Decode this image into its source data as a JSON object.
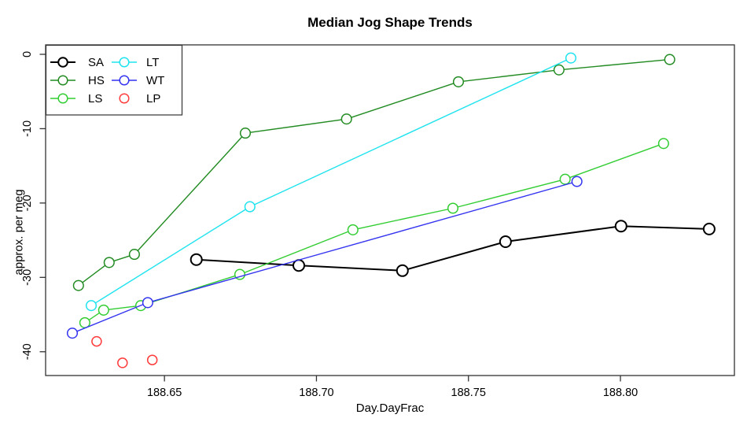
{
  "figure": {
    "title": "Median Jog Shape Trends",
    "xlabel": "Day.DayFrac",
    "ylabel": "approx. per meg"
  },
  "chart_data": {
    "type": "line",
    "title": "Median Jog Shape Trends",
    "xlabel": "Day.DayFrac",
    "ylabel": "approx. per meg",
    "xlim": [
      188.6109,
      188.8375
    ],
    "ylim": [
      -43.2,
      1.27
    ],
    "xticks": [
      188.65,
      188.7,
      188.75,
      188.8
    ],
    "xtick_labels": [
      "188.65",
      "188.70",
      "188.75",
      "188.80"
    ],
    "yticks": [
      0,
      -10,
      -20,
      -30,
      -40
    ],
    "ytick_labels": [
      "0",
      "-10",
      "-20",
      "-30",
      "-40"
    ],
    "grid": false,
    "legend_position": "top-left",
    "legend_columns": 2,
    "axis_color": "#333333",
    "marker": "open-circle",
    "series": [
      {
        "name": "SA",
        "color": "#000000",
        "line": true,
        "lwd": 2,
        "marker_r": 7,
        "points": [
          [
            188.6605,
            -27.6
          ],
          [
            188.6942,
            -28.4
          ],
          [
            188.7283,
            -29.1
          ],
          [
            188.7622,
            -25.2
          ],
          [
            188.8002,
            -23.1
          ],
          [
            188.8292,
            -23.5
          ]
        ]
      },
      {
        "name": "HS",
        "color": "#228B22",
        "line": true,
        "lwd": 1.4,
        "marker_r": 6.3,
        "points": [
          [
            188.6217,
            -31.1
          ],
          [
            188.6318,
            -28.0
          ],
          [
            188.6401,
            -26.9
          ],
          [
            188.6766,
            -10.6
          ],
          [
            188.7099,
            -8.7
          ],
          [
            188.7467,
            -3.7
          ],
          [
            188.7798,
            -2.1
          ],
          [
            188.8162,
            -0.7
          ]
        ]
      },
      {
        "name": "LS",
        "color": "#32CD32",
        "line": true,
        "lwd": 1.4,
        "marker_r": 6.3,
        "points": [
          [
            188.6238,
            -36.1
          ],
          [
            188.63,
            -34.4
          ],
          [
            188.6422,
            -33.8
          ],
          [
            188.6748,
            -29.6
          ],
          [
            188.712,
            -23.6
          ],
          [
            188.7449,
            -20.7
          ],
          [
            188.7818,
            -16.8
          ],
          [
            188.8142,
            -12.0
          ]
        ]
      },
      {
        "name": "LT",
        "color": "#1EE3EE",
        "line": true,
        "lwd": 1.4,
        "marker_r": 6.3,
        "points": [
          [
            188.6259,
            -33.8
          ],
          [
            188.6781,
            -20.5
          ],
          [
            188.7837,
            -0.5
          ]
        ]
      },
      {
        "name": "WT",
        "color": "#3434F0",
        "line": true,
        "lwd": 1.4,
        "marker_r": 6.3,
        "points": [
          [
            188.6197,
            -37.5
          ],
          [
            188.6445,
            -33.4
          ],
          [
            188.7857,
            -17.1
          ]
        ]
      },
      {
        "name": "LP",
        "color": "#FF3B3B",
        "line": false,
        "lwd": 1.5,
        "marker_r": 6,
        "points": [
          [
            188.6277,
            -38.6
          ],
          [
            188.6362,
            -41.5
          ],
          [
            188.646,
            -41.1
          ]
        ]
      }
    ]
  }
}
